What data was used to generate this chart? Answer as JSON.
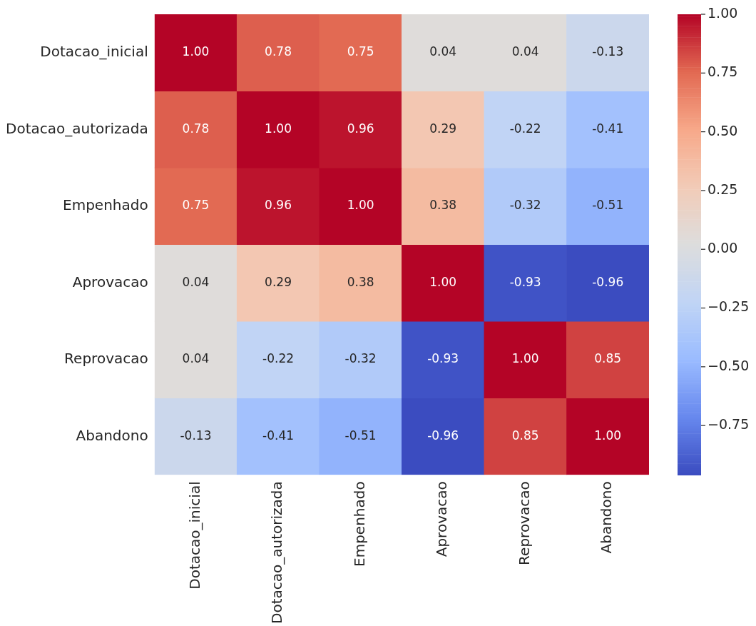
{
  "chart_data": {
    "type": "heatmap",
    "categories": [
      "Dotacao_inicial",
      "Dotacao_autorizada",
      "Empenhado",
      "Aprovacao",
      "Reprovacao",
      "Abandono"
    ],
    "y_categories": [
      "Dotacao_inicial",
      "Dotacao_autorizada",
      "Empenhado",
      "Aprovacao",
      "Reprovacao",
      "Abandono"
    ],
    "cells": [
      [
        1.0,
        0.78,
        0.75,
        0.04,
        0.04,
        -0.13
      ],
      [
        0.78,
        1.0,
        0.96,
        0.29,
        -0.22,
        -0.41
      ],
      [
        0.75,
        0.96,
        1.0,
        0.38,
        -0.32,
        -0.51
      ],
      [
        0.04,
        0.29,
        0.38,
        1.0,
        -0.93,
        -0.96
      ],
      [
        0.04,
        -0.22,
        -0.32,
        -0.93,
        1.0,
        0.85
      ],
      [
        -0.13,
        -0.41,
        -0.51,
        -0.96,
        0.85,
        1.0
      ]
    ],
    "cell_labels": [
      [
        "1.00",
        "0.78",
        "0.75",
        "0.04",
        "0.04",
        "-0.13"
      ],
      [
        "0.78",
        "1.00",
        "0.96",
        "0.29",
        "-0.22",
        "-0.41"
      ],
      [
        "0.75",
        "0.96",
        "1.00",
        "0.38",
        "-0.32",
        "-0.51"
      ],
      [
        "0.04",
        "0.29",
        "0.38",
        "1.00",
        "-0.93",
        "-0.96"
      ],
      [
        "0.04",
        "-0.22",
        "-0.32",
        "-0.93",
        "1.00",
        "0.85"
      ],
      [
        "-0.13",
        "-0.41",
        "-0.51",
        "-0.96",
        "0.85",
        "1.00"
      ]
    ],
    "clim": [
      -0.96,
      1.0
    ],
    "cticks": [
      {
        "value": 1.0,
        "label": "1.00"
      },
      {
        "value": 0.75,
        "label": "0.75"
      },
      {
        "value": 0.5,
        "label": "0.50"
      },
      {
        "value": 0.25,
        "label": "0.25"
      },
      {
        "value": 0.0,
        "label": "0.00"
      },
      {
        "value": -0.25,
        "label": "−0.25"
      },
      {
        "value": -0.5,
        "label": "−0.50"
      },
      {
        "value": -0.75,
        "label": "−0.75"
      }
    ],
    "data_labels": true
  }
}
